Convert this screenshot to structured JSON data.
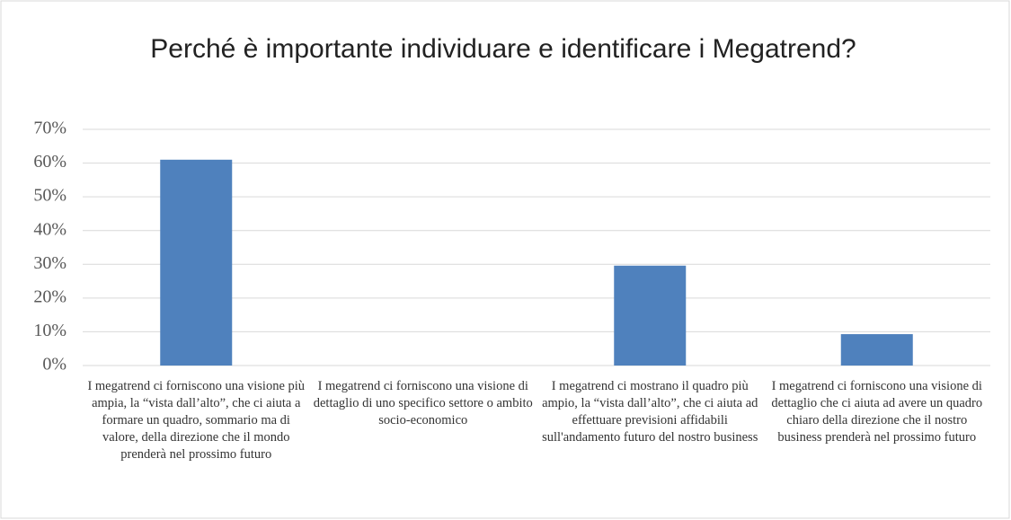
{
  "chart_data": {
    "type": "bar",
    "title": "Perché è importante individuare e identificare i Megatrend?",
    "categories": [
      "I megatrend ci forniscono una visione più ampia, la “vista dall’alto”, che ci aiuta a formare un quadro, sommario ma di valore, della direzione che il mondo prenderà nel prossimo futuro",
      "I megatrend ci forniscono una visione di dettaglio di uno specifico settore o ambito socio-economico",
      "I megatrend  ci mostrano il quadro più ampio, la “vista dall’alto”, che ci aiuta ad effettuare previsioni affidabili sull'andamento futuro del nostro business",
      "I megatrend ci forniscono una visione di dettaglio che ci aiuta ad avere un quadro chiaro della direzione che il nostro business prenderà nel prossimo futuro"
    ],
    "values": [
      61,
      0,
      29.6,
      9.3
    ],
    "color": "#4f81bd",
    "ylim": [
      0,
      70
    ],
    "yticks": [
      {
        "value": 0,
        "label": "0%"
      },
      {
        "value": 10,
        "label": "10%"
      },
      {
        "value": 20,
        "label": "20%"
      },
      {
        "value": 30,
        "label": "30%"
      },
      {
        "value": 40,
        "label": "40%"
      },
      {
        "value": 50,
        "label": "50%"
      },
      {
        "value": 60,
        "label": "60%"
      },
      {
        "value": 70,
        "label": "70%"
      }
    ],
    "grid": true
  }
}
